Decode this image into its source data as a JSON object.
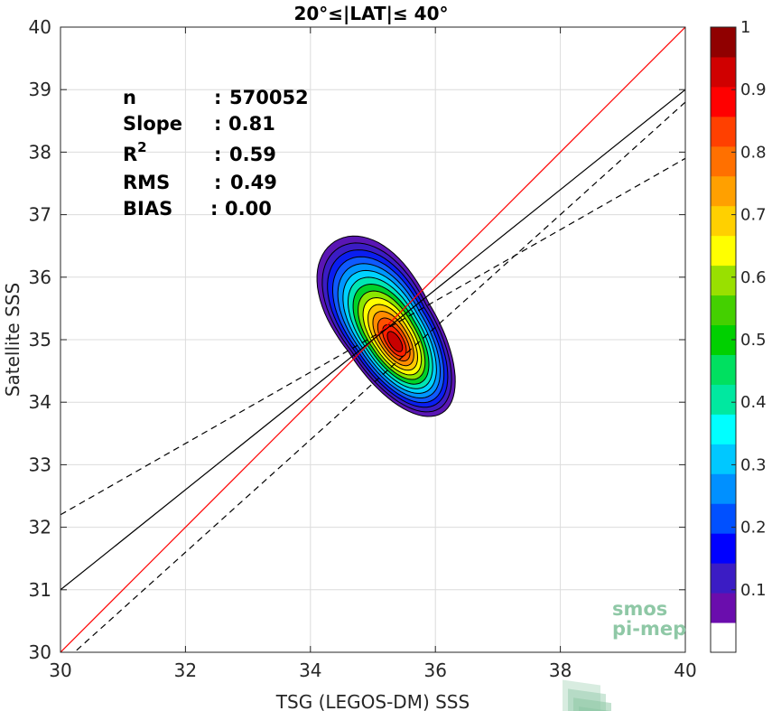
{
  "chart_data": {
    "type": "heatmap",
    "title": "20°≤|LAT|≤ 40°",
    "xlabel": "TSG (LEGOS-DM) SSS",
    "ylabel": "Satellite SSS",
    "xlim": [
      30,
      40
    ],
    "ylim": [
      30,
      40
    ],
    "xticks": [
      "30",
      "32",
      "34",
      "36",
      "38",
      "40"
    ],
    "yticks": [
      "30",
      "31",
      "32",
      "33",
      "34",
      "35",
      "36",
      "37",
      "38",
      "39",
      "40"
    ],
    "grid": true,
    "stats": [
      {
        "label": "n",
        "sep": ":",
        "value": "570052"
      },
      {
        "label": "Slope",
        "sep": ":",
        "value": "0.81"
      },
      {
        "label": "R",
        "sup": "2",
        "sep": ":",
        "value": "0.59"
      },
      {
        "label": "RMS",
        "sep": ":",
        "value": "0.49"
      },
      {
        "label": "BIAS",
        "sep": ":",
        "value": "0.00"
      }
    ],
    "lines": {
      "identity": {
        "x": [
          30,
          40
        ],
        "y": [
          30,
          40
        ],
        "color": "#ff0000"
      },
      "fit": {
        "x": [
          30,
          40
        ],
        "y": [
          31.0,
          39.0
        ],
        "color": "#000000"
      },
      "upper_band": {
        "x": [
          30,
          40
        ],
        "y": [
          32.2,
          37.9
        ],
        "color": "#000000",
        "dash": true
      },
      "lower_band": {
        "x": [
          30,
          40
        ],
        "y": [
          29.8,
          38.8
        ],
        "color": "#000000",
        "dash": true
      }
    },
    "density": {
      "center": [
        35.25,
        35.2
      ],
      "levels": [
        0.05,
        0.1,
        0.2,
        0.3,
        0.4,
        0.5,
        0.6,
        0.7,
        0.8,
        0.9
      ]
    },
    "colorbar": {
      "min": 0,
      "max": 1,
      "ticks": [
        "0.1",
        "0.2",
        "0.3",
        "0.4",
        "0.5",
        "0.6",
        "0.7",
        "0.8",
        "0.9",
        "1"
      ],
      "colors": [
        "#ffffff",
        "#6a0dad",
        "#3b1cc4",
        "#0000ff",
        "#0050ff",
        "#0090ff",
        "#00c8ff",
        "#00ffff",
        "#00e8a0",
        "#00e060",
        "#00d000",
        "#44d000",
        "#99e000",
        "#ffff00",
        "#ffd000",
        "#ffa000",
        "#ff7000",
        "#ff4000",
        "#ff0000",
        "#d00000",
        "#900000"
      ]
    }
  },
  "watermark": {
    "line1": "smos",
    "line2": "pi-mep",
    "color": "#8fc8a6"
  }
}
